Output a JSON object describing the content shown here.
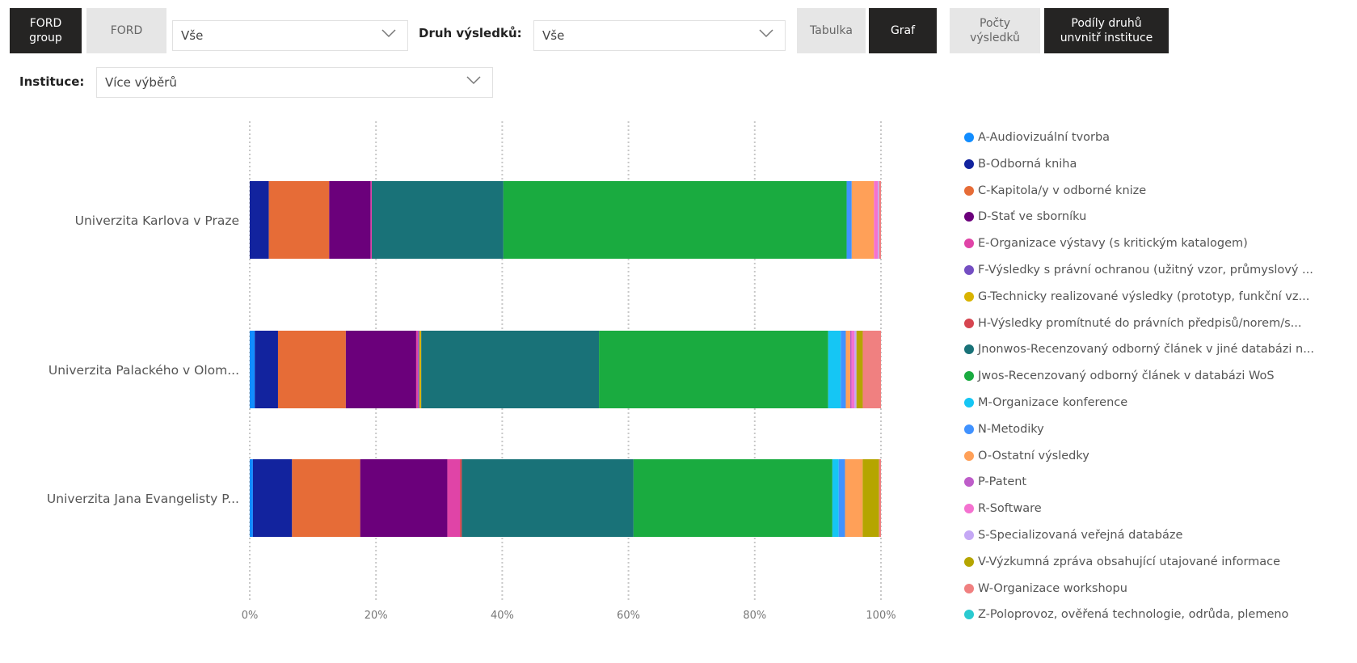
{
  "filters": {
    "ford_group_label": "FORD\ngroup",
    "ford_label": "FORD",
    "ford_dropdown_value": "Vše",
    "druh_label": "Druh výsledků:",
    "druh_dropdown_value": "Vše",
    "tabulka_label": "Tabulka",
    "graf_label": "Graf",
    "pocty_label": "Počty\nvýsledků",
    "podily_label": "Podíly druhů\nunvnitř instituce",
    "instituce_label": "Instituce:",
    "instituce_dropdown_value": "Více výběrů"
  },
  "colors": {
    "active_button": "#252423",
    "inactive_button": "#e6e6e6"
  },
  "chart_data": {
    "type": "bar",
    "orientation": "horizontal",
    "stacked": "percent",
    "categories": [
      "Univerzita Karlova v Praze",
      "Univerzita Palackého v Olom...",
      "Univerzita Jana Evangelisty P..."
    ],
    "x_ticks": [
      "0%",
      "20%",
      "40%",
      "60%",
      "80%",
      "100%"
    ],
    "xlim": [
      0,
      100
    ],
    "grid": "vertical dotted",
    "legend_position": "right",
    "series": [
      {
        "name": "A-Audiovizuální tvorba",
        "color": "#118DFF",
        "values": [
          0.0,
          0.8,
          0.5
        ]
      },
      {
        "name": "B-Odborná kniha",
        "color": "#12239E",
        "values": [
          3.0,
          3.7,
          6.2
        ]
      },
      {
        "name": "C-Kapitola/y v odborné knize",
        "color": "#E66C37",
        "values": [
          9.5,
          10.8,
          10.8
        ]
      },
      {
        "name": "D-Stať ve sborníku",
        "color": "#6B007B",
        "values": [
          6.5,
          11.2,
          13.8
        ]
      },
      {
        "name": "E-Organizace výstavy (s kritickým katalogem)",
        "color": "#E044A7",
        "values": [
          0.2,
          0.3,
          2.0
        ]
      },
      {
        "name": "F-Výsledky s právní ochranou (užitný vzor, průmyslový ...",
        "color": "#744EC2",
        "values": [
          0.0,
          0.2,
          0.0
        ]
      },
      {
        "name": "G-Technicky realizované výsledky (prototyp, funkční vz...",
        "color": "#D9B300",
        "values": [
          0.0,
          0.3,
          0.0
        ]
      },
      {
        "name": "H-Výsledky promítnuté do právních předpisů/norem/s...",
        "color": "#D64550",
        "values": [
          0.0,
          0.0,
          0.3
        ]
      },
      {
        "name": "Jnonwos-Recenzovaný odborný článek v jiné databázi n...",
        "color": "#197278",
        "values": [
          20.7,
          28.3,
          27.2
        ]
      },
      {
        "name": "Jwos-Recenzovaný odborný článek v databázi WoS",
        "color": "#1AAB40",
        "values": [
          54.0,
          36.5,
          31.5
        ]
      },
      {
        "name": "M-Organizace konference",
        "color": "#15C6F4",
        "values": [
          0.0,
          2.0,
          1.0
        ]
      },
      {
        "name": "N-Metodiky",
        "color": "#4092FF",
        "values": [
          0.8,
          0.8,
          1.0
        ]
      },
      {
        "name": "O-Ostatní výsledky",
        "color": "#FFA058",
        "values": [
          3.5,
          0.7,
          2.8
        ]
      },
      {
        "name": "P-Patent",
        "color": "#BE5DC9",
        "values": [
          0.0,
          0.2,
          0.0
        ]
      },
      {
        "name": "R-Software",
        "color": "#F472D0",
        "values": [
          0.6,
          0.5,
          0.0
        ]
      },
      {
        "name": "S-Specializovaná veřejná databáze",
        "color": "#C5A8F5",
        "values": [
          0.2,
          0.3,
          0.0
        ]
      },
      {
        "name": "V-Výzkumná zpráva obsahující utajované informace",
        "color": "#B5A500",
        "values": [
          0.0,
          1.0,
          2.6
        ]
      },
      {
        "name": "W-Organizace workshopu",
        "color": "#F08080",
        "values": [
          0.3,
          2.9,
          0.3
        ]
      },
      {
        "name": "Z-Poloprovoz, ověřená technologie, odrůda, plemeno",
        "color": "#2ACAD0",
        "values": [
          0.0,
          0.0,
          0.0
        ]
      }
    ]
  }
}
